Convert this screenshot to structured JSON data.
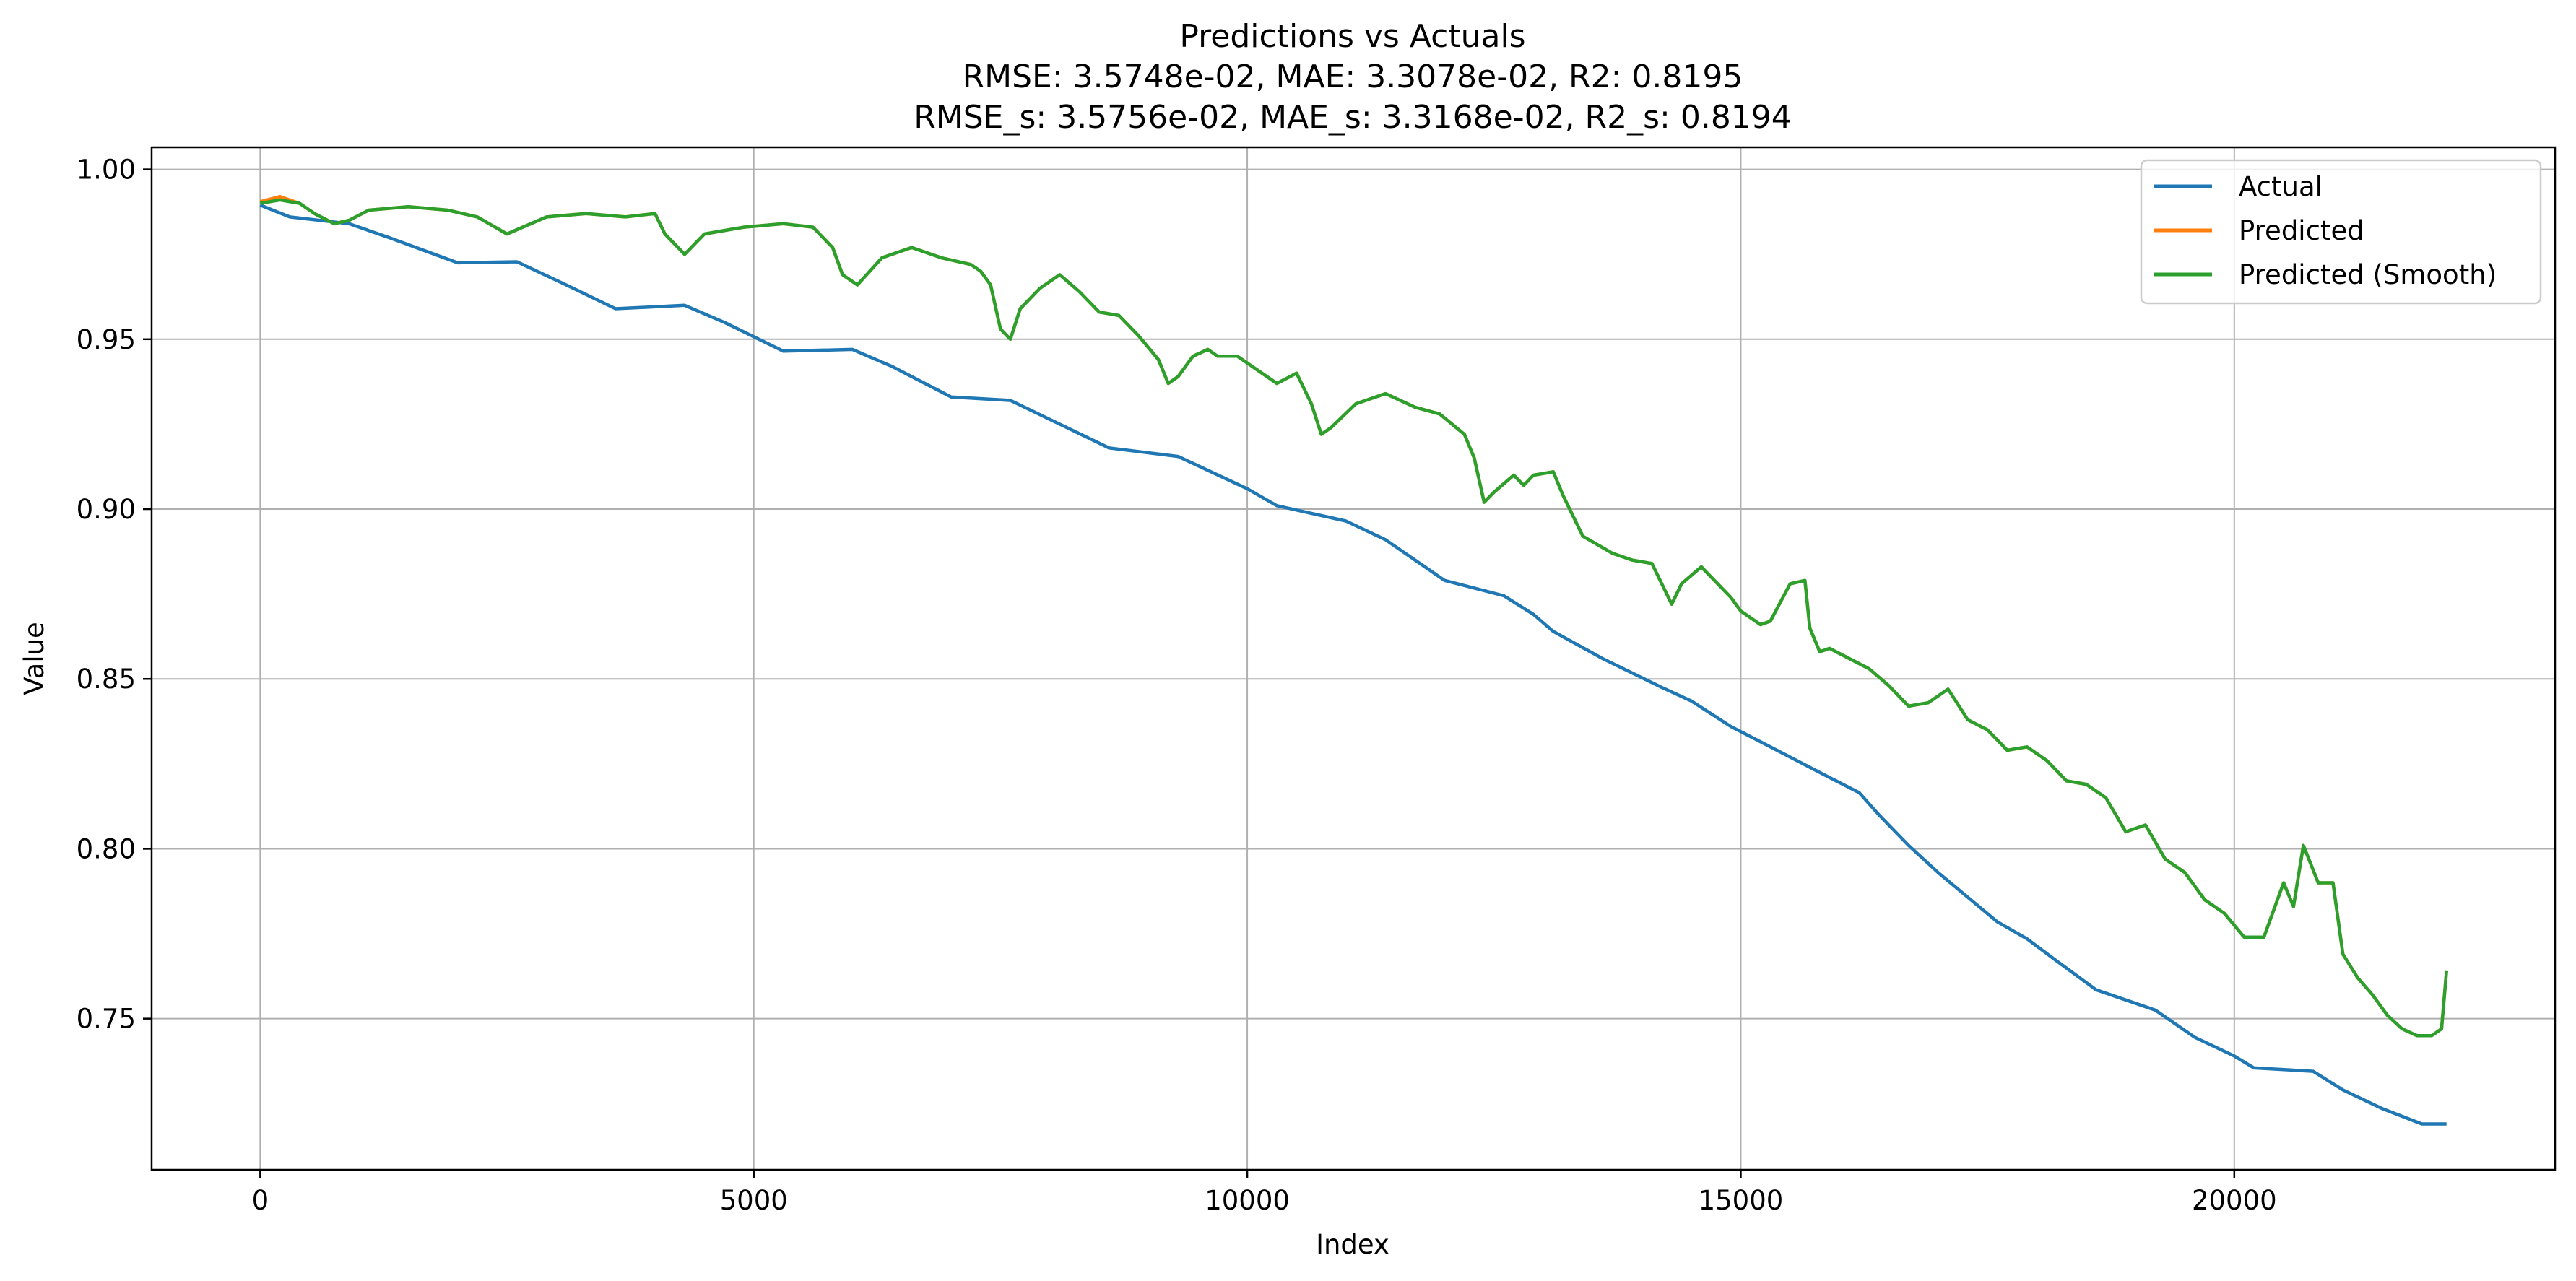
{
  "chart_data": {
    "type": "line",
    "title": "Predictions vs Actuals",
    "subtitle_lines": [
      "RMSE: 3.5748e-02, MAE: 3.3078e-02, R2: 0.8195",
      "RMSE_s: 3.5756e-02, MAE_s: 3.3168e-02, R2_s: 0.8194"
    ],
    "xlabel": "Index",
    "ylabel": "Value",
    "xlim": [
      -1100,
      23250
    ],
    "ylim": [
      0.7055,
      1.0065
    ],
    "xticks": [
      0,
      5000,
      10000,
      15000,
      20000
    ],
    "xtick_labels": [
      "0",
      "5000",
      "10000",
      "15000",
      "20000"
    ],
    "yticks": [
      0.75,
      0.8,
      0.85,
      0.9,
      0.95,
      1.0
    ],
    "ytick_labels": [
      "0.75",
      "0.80",
      "0.85",
      "0.90",
      "0.95",
      "1.00"
    ],
    "grid": true,
    "legend_position": "top-right",
    "colors": {
      "actual": "#1f77b4",
      "predicted": "#ff7f0e",
      "smooth": "#2ca02c",
      "grid": "#b0b0b0"
    },
    "series": [
      {
        "name": "Actual",
        "x": [
          0,
          300,
          900,
          1300,
          2000,
          2600,
          3100,
          3600,
          4300,
          4700,
          5300,
          6000,
          6400,
          7000,
          7600,
          8100,
          8600,
          9300,
          10000,
          10300,
          11000,
          11400,
          11800,
          12000,
          12600,
          12900,
          13100,
          13600,
          14200,
          14500,
          14900,
          15300,
          15900,
          16200,
          16400,
          16700,
          17000,
          17600,
          17900,
          18200,
          18600,
          19200,
          19600,
          20000,
          20200,
          20800,
          21100,
          21500,
          21900,
          22150
        ],
        "values": [
          0.9895,
          0.986,
          0.984,
          0.98,
          0.9725,
          0.9728,
          0.966,
          0.959,
          0.96,
          0.955,
          0.9465,
          0.947,
          0.942,
          0.933,
          0.932,
          0.925,
          0.918,
          0.9155,
          0.906,
          0.901,
          0.8965,
          0.891,
          0.883,
          0.879,
          0.8745,
          0.869,
          0.864,
          0.856,
          0.8475,
          0.8435,
          0.836,
          0.83,
          0.821,
          0.8165,
          0.81,
          0.801,
          0.793,
          0.7785,
          0.7735,
          0.767,
          0.7585,
          0.7525,
          0.7445,
          0.739,
          0.7355,
          0.7345,
          0.729,
          0.7235,
          0.719,
          0.719
        ]
      },
      {
        "name": "Predicted",
        "x": [
          0,
          200,
          400,
          550,
          750,
          900,
          1100,
          1500,
          1900,
          2200,
          2500,
          2900,
          3300,
          3700,
          4000,
          4100,
          4300,
          4500,
          4900,
          5300,
          5600,
          5800,
          5900,
          6050,
          6300,
          6600,
          6900,
          7200,
          7300,
          7400,
          7500,
          7600,
          7700,
          7900,
          8100,
          8300,
          8500,
          8700,
          8900,
          9100,
          9200,
          9300,
          9450,
          9600,
          9700,
          9900,
          10100,
          10300,
          10500,
          10650,
          10750,
          10850,
          11100,
          11400,
          11700,
          11950,
          12200,
          12300,
          12400,
          12500,
          12700,
          12800,
          12900,
          13100,
          13200,
          13400,
          13700,
          13900,
          14100,
          14300,
          14400,
          14600,
          14900,
          15000,
          15200,
          15300,
          15500,
          15650,
          15700,
          15800,
          15900,
          16100,
          16300,
          16500,
          16700,
          16900,
          17100,
          17300,
          17500,
          17700,
          17900,
          18100,
          18300,
          18500,
          18700,
          18900,
          19100,
          19300,
          19500,
          19700,
          19900,
          20100,
          20300,
          20500,
          20600,
          20700,
          20850,
          21000,
          21100,
          21250,
          21400,
          21550,
          21700,
          21850,
          22000,
          22100,
          22150
        ],
        "values": [
          0.9905,
          0.992,
          0.99,
          0.987,
          0.984,
          0.985,
          0.988,
          0.989,
          0.988,
          0.986,
          0.981,
          0.986,
          0.987,
          0.986,
          0.987,
          0.981,
          0.975,
          0.981,
          0.983,
          0.984,
          0.983,
          0.977,
          0.969,
          0.966,
          0.974,
          0.977,
          0.974,
          0.972,
          0.97,
          0.966,
          0.953,
          0.95,
          0.959,
          0.965,
          0.969,
          0.964,
          0.958,
          0.957,
          0.951,
          0.944,
          0.937,
          0.939,
          0.945,
          0.947,
          0.945,
          0.945,
          0.941,
          0.937,
          0.94,
          0.931,
          0.922,
          0.924,
          0.931,
          0.934,
          0.93,
          0.928,
          0.922,
          0.915,
          0.902,
          0.905,
          0.91,
          0.907,
          0.91,
          0.911,
          0.904,
          0.892,
          0.887,
          0.885,
          0.884,
          0.872,
          0.878,
          0.883,
          0.874,
          0.87,
          0.866,
          0.867,
          0.878,
          0.879,
          0.865,
          0.858,
          0.859,
          0.856,
          0.853,
          0.848,
          0.842,
          0.843,
          0.847,
          0.838,
          0.835,
          0.829,
          0.83,
          0.826,
          0.82,
          0.819,
          0.815,
          0.805,
          0.807,
          0.797,
          0.793,
          0.785,
          0.781,
          0.774,
          0.774,
          0.79,
          0.783,
          0.801,
          0.79,
          0.79,
          0.769,
          0.762,
          0.757,
          0.751,
          0.747,
          0.745,
          0.745,
          0.747,
          0.764
        ]
      },
      {
        "name": "Predicted (Smooth)",
        "x": [
          0,
          200,
          400,
          550,
          750,
          900,
          1100,
          1500,
          1900,
          2200,
          2500,
          2900,
          3300,
          3700,
          4000,
          4100,
          4300,
          4500,
          4900,
          5300,
          5600,
          5800,
          5900,
          6050,
          6300,
          6600,
          6900,
          7200,
          7300,
          7400,
          7500,
          7600,
          7700,
          7900,
          8100,
          8300,
          8500,
          8700,
          8900,
          9100,
          9200,
          9300,
          9450,
          9600,
          9700,
          9900,
          10100,
          10300,
          10500,
          10650,
          10750,
          10850,
          11100,
          11400,
          11700,
          11950,
          12200,
          12300,
          12400,
          12500,
          12700,
          12800,
          12900,
          13100,
          13200,
          13400,
          13700,
          13900,
          14100,
          14300,
          14400,
          14600,
          14900,
          15000,
          15200,
          15300,
          15500,
          15650,
          15700,
          15800,
          15900,
          16100,
          16300,
          16500,
          16700,
          16900,
          17100,
          17300,
          17500,
          17700,
          17900,
          18100,
          18300,
          18500,
          18700,
          18900,
          19100,
          19300,
          19500,
          19700,
          19900,
          20100,
          20300,
          20500,
          20600,
          20700,
          20850,
          21000,
          21100,
          21250,
          21400,
          21550,
          21700,
          21850,
          22000,
          22100,
          22150
        ],
        "values": [
          0.99,
          0.991,
          0.99,
          0.987,
          0.984,
          0.985,
          0.988,
          0.989,
          0.988,
          0.986,
          0.981,
          0.986,
          0.987,
          0.986,
          0.987,
          0.981,
          0.975,
          0.981,
          0.983,
          0.984,
          0.983,
          0.977,
          0.969,
          0.966,
          0.974,
          0.977,
          0.974,
          0.972,
          0.97,
          0.966,
          0.953,
          0.95,
          0.959,
          0.965,
          0.969,
          0.964,
          0.958,
          0.957,
          0.951,
          0.944,
          0.937,
          0.939,
          0.945,
          0.947,
          0.945,
          0.945,
          0.941,
          0.937,
          0.94,
          0.931,
          0.922,
          0.924,
          0.931,
          0.934,
          0.93,
          0.928,
          0.922,
          0.915,
          0.902,
          0.905,
          0.91,
          0.907,
          0.91,
          0.911,
          0.904,
          0.892,
          0.887,
          0.885,
          0.884,
          0.872,
          0.878,
          0.883,
          0.874,
          0.87,
          0.866,
          0.867,
          0.878,
          0.879,
          0.865,
          0.858,
          0.859,
          0.856,
          0.853,
          0.848,
          0.842,
          0.843,
          0.847,
          0.838,
          0.835,
          0.829,
          0.83,
          0.826,
          0.82,
          0.819,
          0.815,
          0.805,
          0.807,
          0.797,
          0.793,
          0.785,
          0.781,
          0.774,
          0.774,
          0.79,
          0.783,
          0.801,
          0.79,
          0.79,
          0.769,
          0.762,
          0.757,
          0.751,
          0.747,
          0.745,
          0.745,
          0.747,
          0.764
        ]
      }
    ]
  }
}
